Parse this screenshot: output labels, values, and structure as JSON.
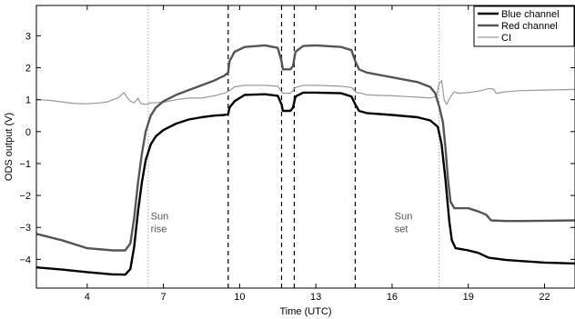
{
  "chart_data": {
    "type": "line",
    "xlabel": "Time (UTC)",
    "ylabel": "ODS output (V)",
    "xlim": [
      2,
      23.2
    ],
    "ylim": [
      -4.9,
      3.95
    ],
    "xticks": [
      4,
      7,
      10,
      13,
      16,
      19,
      22
    ],
    "yticks": [
      -4,
      -3,
      -2,
      -1,
      0,
      1,
      2,
      3
    ],
    "grid": false,
    "legend": "top-right",
    "series": [
      {
        "name": "Blue channel",
        "color": "#000000",
        "style": "thick",
        "points": [
          [
            2.0,
            -4.25
          ],
          [
            3.0,
            -4.32
          ],
          [
            4.0,
            -4.4
          ],
          [
            5.0,
            -4.47
          ],
          [
            5.5,
            -4.48
          ],
          [
            5.7,
            -4.3
          ],
          [
            5.85,
            -3.6
          ],
          [
            6.0,
            -2.5
          ],
          [
            6.15,
            -1.6
          ],
          [
            6.3,
            -0.9
          ],
          [
            6.5,
            -0.4
          ],
          [
            6.7,
            -0.15
          ],
          [
            7.0,
            0.05
          ],
          [
            7.5,
            0.25
          ],
          [
            8.0,
            0.38
          ],
          [
            8.5,
            0.45
          ],
          [
            9.0,
            0.5
          ],
          [
            9.4,
            0.52
          ],
          [
            9.55,
            0.55
          ],
          [
            9.6,
            0.75
          ],
          [
            9.8,
            0.95
          ],
          [
            10.2,
            1.15
          ],
          [
            11.0,
            1.17
          ],
          [
            11.5,
            1.12
          ],
          [
            11.65,
            0.85
          ],
          [
            11.7,
            0.65
          ],
          [
            12.0,
            0.65
          ],
          [
            12.1,
            0.75
          ],
          [
            12.2,
            1.1
          ],
          [
            12.5,
            1.22
          ],
          [
            13.0,
            1.22
          ],
          [
            14.0,
            1.2
          ],
          [
            14.4,
            1.1
          ],
          [
            14.55,
            0.85
          ],
          [
            14.7,
            0.65
          ],
          [
            15.0,
            0.58
          ],
          [
            16.0,
            0.52
          ],
          [
            17.0,
            0.45
          ],
          [
            17.5,
            0.35
          ],
          [
            17.8,
            0.15
          ],
          [
            17.95,
            -0.4
          ],
          [
            18.1,
            -1.5
          ],
          [
            18.25,
            -2.8
          ],
          [
            18.35,
            -3.4
          ],
          [
            18.5,
            -3.65
          ],
          [
            19.0,
            -3.72
          ],
          [
            19.4,
            -3.8
          ],
          [
            19.8,
            -3.95
          ],
          [
            20.5,
            -4.02
          ],
          [
            21.0,
            -4.05
          ],
          [
            22.0,
            -4.1
          ],
          [
            23.2,
            -4.13
          ]
        ]
      },
      {
        "name": "Red channel",
        "color": "#555555",
        "style": "thick",
        "points": [
          [
            2.0,
            -3.2
          ],
          [
            3.0,
            -3.4
          ],
          [
            4.0,
            -3.65
          ],
          [
            5.0,
            -3.72
          ],
          [
            5.5,
            -3.72
          ],
          [
            5.7,
            -3.5
          ],
          [
            5.85,
            -2.7
          ],
          [
            6.0,
            -1.6
          ],
          [
            6.15,
            -0.7
          ],
          [
            6.3,
            0.0
          ],
          [
            6.5,
            0.5
          ],
          [
            6.7,
            0.75
          ],
          [
            7.0,
            0.95
          ],
          [
            7.5,
            1.15
          ],
          [
            8.0,
            1.3
          ],
          [
            8.5,
            1.45
          ],
          [
            9.0,
            1.6
          ],
          [
            9.4,
            1.75
          ],
          [
            9.55,
            1.85
          ],
          [
            9.6,
            2.2
          ],
          [
            9.8,
            2.5
          ],
          [
            10.2,
            2.65
          ],
          [
            11.0,
            2.7
          ],
          [
            11.5,
            2.62
          ],
          [
            11.65,
            2.2
          ],
          [
            11.7,
            1.95
          ],
          [
            12.0,
            1.95
          ],
          [
            12.1,
            2.05
          ],
          [
            12.2,
            2.5
          ],
          [
            12.5,
            2.68
          ],
          [
            13.0,
            2.7
          ],
          [
            14.0,
            2.65
          ],
          [
            14.4,
            2.55
          ],
          [
            14.55,
            2.2
          ],
          [
            14.7,
            1.95
          ],
          [
            15.0,
            1.85
          ],
          [
            16.0,
            1.7
          ],
          [
            17.0,
            1.55
          ],
          [
            17.5,
            1.4
          ],
          [
            17.7,
            1.2
          ],
          [
            17.85,
            0.8
          ],
          [
            18.0,
            0.3
          ],
          [
            18.1,
            -0.5
          ],
          [
            18.2,
            -1.5
          ],
          [
            18.3,
            -2.2
          ],
          [
            18.45,
            -2.4
          ],
          [
            19.0,
            -2.4
          ],
          [
            19.4,
            -2.5
          ],
          [
            19.7,
            -2.6
          ],
          [
            19.9,
            -2.78
          ],
          [
            20.5,
            -2.8
          ],
          [
            21.0,
            -2.8
          ],
          [
            22.0,
            -2.79
          ],
          [
            23.2,
            -2.78
          ]
        ]
      },
      {
        "name": "CI",
        "color": "#999999",
        "style": "thin",
        "points": [
          [
            2.0,
            1.0
          ],
          [
            2.5,
            0.98
          ],
          [
            3.0,
            0.93
          ],
          [
            3.5,
            0.88
          ],
          [
            4.0,
            0.87
          ],
          [
            4.5,
            0.9
          ],
          [
            4.8,
            0.93
          ],
          [
            5.0,
            1.0
          ],
          [
            5.2,
            1.05
          ],
          [
            5.45,
            1.22
          ],
          [
            5.55,
            1.1
          ],
          [
            5.7,
            0.95
          ],
          [
            5.85,
            0.9
          ],
          [
            6.0,
            1.05
          ],
          [
            6.1,
            0.88
          ],
          [
            6.3,
            0.85
          ],
          [
            6.5,
            0.9
          ],
          [
            7.0,
            0.92
          ],
          [
            7.5,
            1.0
          ],
          [
            8.0,
            1.05
          ],
          [
            8.5,
            1.05
          ],
          [
            9.0,
            1.12
          ],
          [
            9.4,
            1.2
          ],
          [
            9.6,
            1.28
          ],
          [
            9.8,
            1.4
          ],
          [
            10.2,
            1.45
          ],
          [
            11.0,
            1.45
          ],
          [
            11.5,
            1.42
          ],
          [
            11.65,
            1.25
          ],
          [
            11.7,
            1.2
          ],
          [
            12.0,
            1.2
          ],
          [
            12.2,
            1.38
          ],
          [
            12.5,
            1.45
          ],
          [
            13.0,
            1.45
          ],
          [
            14.0,
            1.42
          ],
          [
            14.4,
            1.38
          ],
          [
            14.6,
            1.22
          ],
          [
            14.8,
            1.2
          ],
          [
            15.0,
            1.15
          ],
          [
            16.0,
            1.12
          ],
          [
            16.5,
            1.1
          ],
          [
            17.0,
            1.08
          ],
          [
            17.5,
            1.05
          ],
          [
            17.75,
            1.1
          ],
          [
            17.85,
            1.5
          ],
          [
            17.95,
            1.6
          ],
          [
            18.05,
            1.0
          ],
          [
            18.15,
            0.85
          ],
          [
            18.3,
            1.1
          ],
          [
            18.45,
            1.25
          ],
          [
            18.6,
            1.2
          ],
          [
            19.0,
            1.22
          ],
          [
            19.5,
            1.28
          ],
          [
            19.8,
            1.35
          ],
          [
            20.0,
            1.33
          ],
          [
            20.1,
            1.2
          ],
          [
            20.5,
            1.25
          ],
          [
            21.0,
            1.28
          ],
          [
            22.0,
            1.3
          ],
          [
            23.2,
            1.32
          ]
        ]
      }
    ],
    "vlines_dashed": [
      9.55,
      11.65,
      12.15,
      14.55
    ],
    "vlines_dotted": [
      6.4,
      17.85
    ],
    "annotations": [
      {
        "lines": [
          "Sun",
          "rise"
        ],
        "x": 6.5,
        "y": -2.75
      },
      {
        "lines": [
          "Sun",
          "set"
        ],
        "x": 16.1,
        "y": -2.75
      }
    ]
  }
}
